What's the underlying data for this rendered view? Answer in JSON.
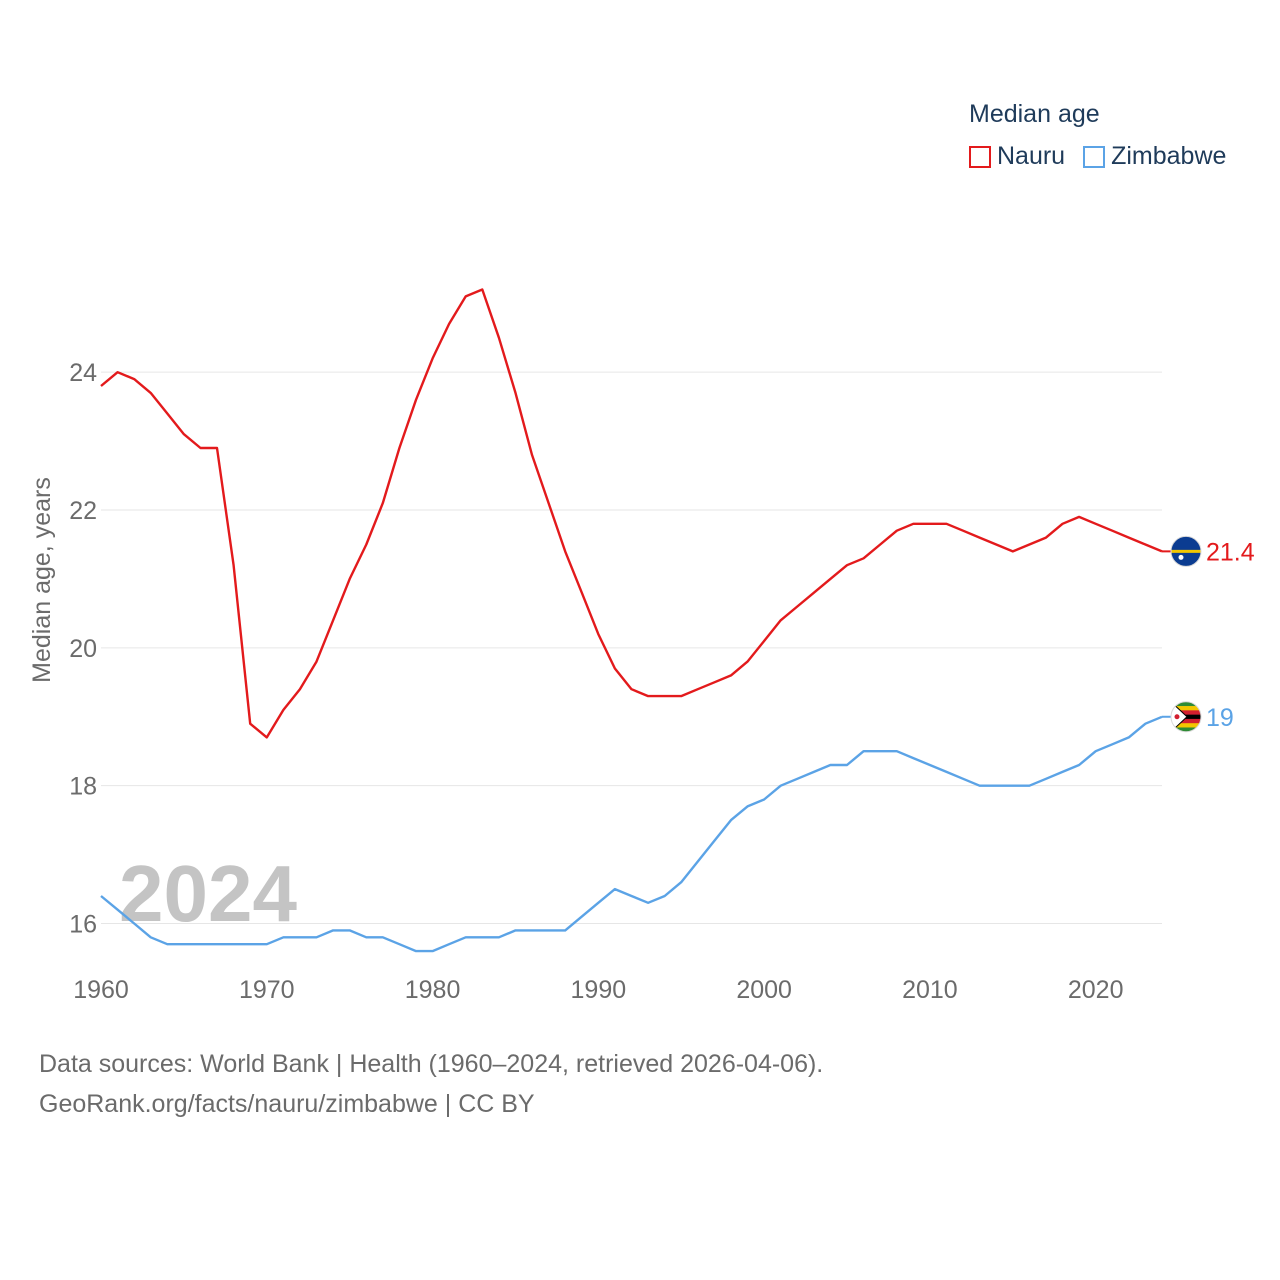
{
  "chart_data": {
    "type": "line",
    "legend_title": "Median age",
    "ylabel": "Median age, years",
    "xlabel": "",
    "ylim": [
      14.6,
      26.6
    ],
    "xlim": [
      1960,
      2024
    ],
    "yticks": [
      16,
      18,
      20,
      22,
      24
    ],
    "xticks": [
      1960,
      1970,
      1980,
      1990,
      2000,
      2010,
      2020
    ],
    "grid": true,
    "legend_position": "top-right",
    "year_watermark": "2024",
    "x": [
      1960,
      1961,
      1962,
      1963,
      1964,
      1965,
      1966,
      1967,
      1968,
      1969,
      1970,
      1971,
      1972,
      1973,
      1974,
      1975,
      1976,
      1977,
      1978,
      1979,
      1980,
      1981,
      1982,
      1983,
      1984,
      1985,
      1986,
      1987,
      1988,
      1989,
      1990,
      1991,
      1992,
      1993,
      1994,
      1995,
      1996,
      1997,
      1998,
      1999,
      2000,
      2001,
      2002,
      2003,
      2004,
      2005,
      2006,
      2007,
      2008,
      2009,
      2010,
      2011,
      2012,
      2013,
      2014,
      2015,
      2016,
      2017,
      2018,
      2019,
      2020,
      2021,
      2022,
      2023,
      2024
    ],
    "series": [
      {
        "name": "Nauru",
        "color": "#e31a1c",
        "end_label": "21.4",
        "flag_icon": "nauru-flag-icon",
        "values": [
          23.8,
          24.0,
          23.9,
          23.7,
          23.4,
          23.1,
          22.9,
          22.9,
          21.2,
          18.9,
          18.7,
          19.1,
          19.4,
          19.8,
          20.4,
          21.0,
          21.5,
          22.1,
          22.9,
          23.6,
          24.2,
          24.7,
          25.1,
          25.2,
          24.5,
          23.7,
          22.8,
          22.1,
          21.4,
          20.8,
          20.2,
          19.7,
          19.4,
          19.3,
          19.3,
          19.3,
          19.4,
          19.5,
          19.6,
          19.8,
          20.1,
          20.4,
          20.6,
          20.8,
          21.0,
          21.2,
          21.3,
          21.5,
          21.7,
          21.8,
          21.8,
          21.8,
          21.7,
          21.6,
          21.5,
          21.4,
          21.5,
          21.6,
          21.8,
          21.9,
          21.8,
          21.7,
          21.6,
          21.5,
          21.4
        ]
      },
      {
        "name": "Zimbabwe",
        "color": "#5ba3e6",
        "end_label": "19",
        "flag_icon": "zimbabwe-flag-icon",
        "values": [
          16.4,
          16.2,
          16.0,
          15.8,
          15.7,
          15.7,
          15.7,
          15.7,
          15.7,
          15.7,
          15.7,
          15.8,
          15.8,
          15.8,
          15.9,
          15.9,
          15.8,
          15.8,
          15.7,
          15.6,
          15.6,
          15.7,
          15.8,
          15.8,
          15.8,
          15.9,
          15.9,
          15.9,
          15.9,
          16.1,
          16.3,
          16.5,
          16.4,
          16.3,
          16.4,
          16.6,
          16.9,
          17.2,
          17.5,
          17.7,
          17.8,
          18.0,
          18.1,
          18.2,
          18.3,
          18.3,
          18.5,
          18.5,
          18.5,
          18.4,
          18.3,
          18.2,
          18.1,
          18.0,
          18.0,
          18.0,
          18.0,
          18.1,
          18.2,
          18.3,
          18.5,
          18.6,
          18.7,
          18.9,
          19.0
        ]
      }
    ]
  },
  "footer": {
    "source_line": "Data sources: World Bank | Health (1960–2024, retrieved 2026-04-06).",
    "credit_line": "GeoRank.org/facts/nauru/zimbabwe | CC BY"
  }
}
